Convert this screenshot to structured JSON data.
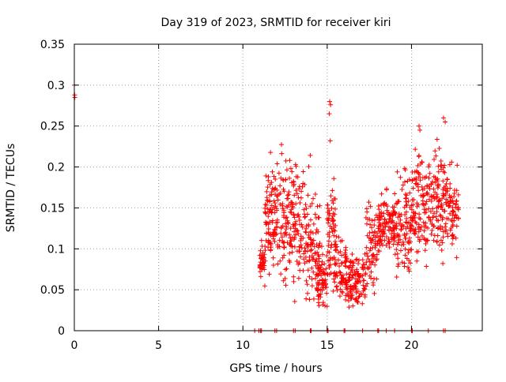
{
  "chart_data": {
    "type": "scatter",
    "title": "Day 319 of 2023, SRMTID for receiver kiri",
    "xlabel": "GPS time / hours",
    "ylabel": "SRMTID / TECUs",
    "xlim": [
      0,
      24.2
    ],
    "ylim": [
      0,
      0.35
    ],
    "grid": true,
    "marker": "+",
    "x_ticks": [
      {
        "value": 0,
        "label": "0"
      },
      {
        "value": 5,
        "label": "5"
      },
      {
        "value": 10,
        "label": "10"
      },
      {
        "value": 15,
        "label": "15"
      },
      {
        "value": 20,
        "label": "20"
      }
    ],
    "y_ticks": [
      {
        "value": 0,
        "label": "0"
      },
      {
        "value": 0.05,
        "label": "0.05"
      },
      {
        "value": 0.1,
        "label": "0.1"
      },
      {
        "value": 0.15,
        "label": "0.15"
      },
      {
        "value": 0.2,
        "label": "0.2"
      },
      {
        "value": 0.25,
        "label": "0.25"
      },
      {
        "value": 0.3,
        "label": "0.3"
      },
      {
        "value": 0.35,
        "label": "0.35"
      }
    ],
    "colors": {
      "points": "#ff0000",
      "grid": "#a0a0a0",
      "axes": "#000000"
    },
    "outliers": [
      {
        "x": 0.0,
        "y": 0.3
      },
      {
        "x": 0.02,
        "y": 0.288
      },
      {
        "x": 0.03,
        "y": 0.285
      },
      {
        "x": 15.15,
        "y": 0.28
      },
      {
        "x": 15.2,
        "y": 0.276
      },
      {
        "x": 15.12,
        "y": 0.265
      },
      {
        "x": 15.18,
        "y": 0.232
      },
      {
        "x": 21.9,
        "y": 0.26
      },
      {
        "x": 22.0,
        "y": 0.255
      },
      {
        "x": 20.45,
        "y": 0.25
      },
      {
        "x": 20.5,
        "y": 0.245
      }
    ],
    "zero_points_x": [
      10.7,
      10.95,
      11.05,
      11.1,
      11.9,
      12.0,
      13.0,
      13.1,
      14.0,
      14.05,
      15.0,
      15.05,
      16.0,
      16.05,
      17.1,
      18.0,
      18.05,
      18.5,
      19.0,
      20.0,
      20.05,
      21.0,
      21.9,
      22.0
    ],
    "segments": [
      {
        "x_start": 11.0,
        "x_end": 11.3,
        "y_center": 0.085,
        "spread": 0.03,
        "count": 35
      },
      {
        "x_start": 11.3,
        "x_end": 12.0,
        "y_center": 0.135,
        "spread": 0.09,
        "count": 90
      },
      {
        "x_start": 12.0,
        "x_end": 13.0,
        "y_center": 0.14,
        "spread": 0.1,
        "count": 110
      },
      {
        "x_start": 13.0,
        "x_end": 14.0,
        "y_center": 0.12,
        "spread": 0.12,
        "count": 110
      },
      {
        "x_start": 14.0,
        "x_end": 14.6,
        "y_center": 0.1,
        "spread": 0.1,
        "count": 60
      },
      {
        "x_start": 14.4,
        "x_end": 15.0,
        "y_center": 0.06,
        "spread": 0.05,
        "count": 60
      },
      {
        "x_start": 15.0,
        "x_end": 15.5,
        "y_center": 0.11,
        "spread": 0.1,
        "count": 70
      },
      {
        "x_start": 15.5,
        "x_end": 16.2,
        "y_center": 0.07,
        "spread": 0.06,
        "count": 70
      },
      {
        "x_start": 16.2,
        "x_end": 17.3,
        "y_center": 0.06,
        "spread": 0.05,
        "count": 110
      },
      {
        "x_start": 17.3,
        "x_end": 18.0,
        "y_center": 0.1,
        "spread": 0.08,
        "count": 70
      },
      {
        "x_start": 18.0,
        "x_end": 19.0,
        "y_center": 0.13,
        "spread": 0.05,
        "count": 110
      },
      {
        "x_start": 19.0,
        "x_end": 20.0,
        "y_center": 0.13,
        "spread": 0.09,
        "count": 110
      },
      {
        "x_start": 20.0,
        "x_end": 21.0,
        "y_center": 0.15,
        "spread": 0.1,
        "count": 110
      },
      {
        "x_start": 21.0,
        "x_end": 22.0,
        "y_center": 0.16,
        "spread": 0.1,
        "count": 110
      },
      {
        "x_start": 22.0,
        "x_end": 22.8,
        "y_center": 0.15,
        "spread": 0.07,
        "count": 80
      }
    ]
  }
}
